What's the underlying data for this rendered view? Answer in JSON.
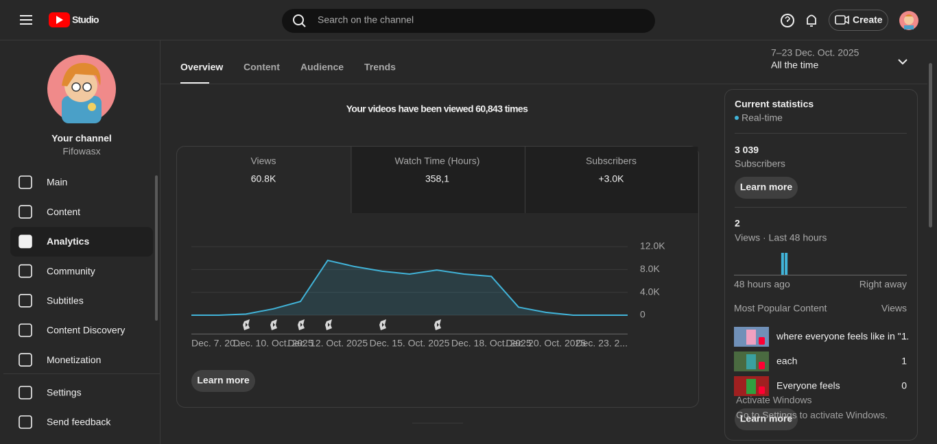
{
  "header": {
    "logo": "Studio",
    "search_placeholder": "Search on the channel",
    "create": "Create"
  },
  "sidebar": {
    "channel_name": "Your channel",
    "handle": "Fifowasx",
    "nav": [
      "Main",
      "Content",
      "Analytics",
      "Community",
      "Subtitles",
      "Content Discovery",
      "Monetization"
    ],
    "footer_nav": [
      "Settings",
      "Send feedback"
    ]
  },
  "tabs": [
    "Overview",
    "Content",
    "Audience",
    "Trends"
  ],
  "date_range": {
    "period": "7–23 Dec. Oct. 2025",
    "label": "All the time"
  },
  "headline": "Your videos have been viewed 60,843 times",
  "metrics": [
    {
      "label": "Views",
      "value": "60.8K"
    },
    {
      "label": "Watch Time (Hours)",
      "value": "358,1"
    },
    {
      "label": "Subscribers",
      "value": "+3.0K"
    }
  ],
  "chart_data": {
    "type": "line",
    "categories": [
      "Dec. 7. 20...",
      null,
      null,
      "Dec. 10. Oct. 2025",
      null,
      "Dec. 12. Oct. 2025",
      null,
      null,
      "Dec. 15. Oct. 2025",
      null,
      null,
      "Dec. 18. Oct. 2025",
      null,
      "Dec. 20. Oct. 2025",
      null,
      null,
      "Dec. 23. 2..."
    ],
    "values": [
      0,
      0,
      200,
      1100,
      2400,
      9600,
      8500,
      7700,
      7200,
      7900,
      7200,
      6800,
      1400,
      500,
      0,
      0,
      0
    ],
    "color": "#41b4d9",
    "ylim": [
      0,
      12000
    ],
    "yticks": [
      0,
      {
        "value": 4000,
        "label": "4.0K"
      },
      {
        "value": 8000,
        "label": "8.0K"
      },
      {
        "value": 12000,
        "label": "12.0K"
      }
    ],
    "grid": true
  },
  "chart_button": "Learn more",
  "current_stats": {
    "title": "Current statistics",
    "realtime": "Real-time",
    "subscribers_value": "3 039",
    "subscribers_label": "Subscribers",
    "button": "Learn more",
    "views_value": "2",
    "views_label": "Views · Last 48 hours",
    "realtime_chart": {
      "type": "bar",
      "values": [
        0,
        0,
        0,
        0,
        0,
        0,
        0,
        0,
        0,
        0,
        0,
        0,
        0,
        1,
        1,
        0,
        0,
        0,
        0,
        0,
        0,
        0,
        0,
        0,
        0,
        0,
        0,
        0,
        0,
        0,
        0,
        0,
        0,
        0,
        0,
        0,
        0,
        0,
        0,
        0,
        0,
        0,
        0,
        0,
        0,
        0,
        0,
        0
      ],
      "color": "#41b4d9"
    },
    "axis_start": "48 hours ago",
    "axis_end": "Right away",
    "popular_title": "Most Popular Content",
    "popular_views": "Views",
    "popular": [
      {
        "title": "where everyone feels like in \"...",
        "views": "1"
      },
      {
        "title": "each",
        "views": "1"
      },
      {
        "title": "Everyone feels",
        "views": "0"
      }
    ],
    "bottom_button": "Learn more"
  },
  "watermark": {
    "title": "Activate Windows",
    "subtitle": "Go to Settings to activate Windows."
  }
}
